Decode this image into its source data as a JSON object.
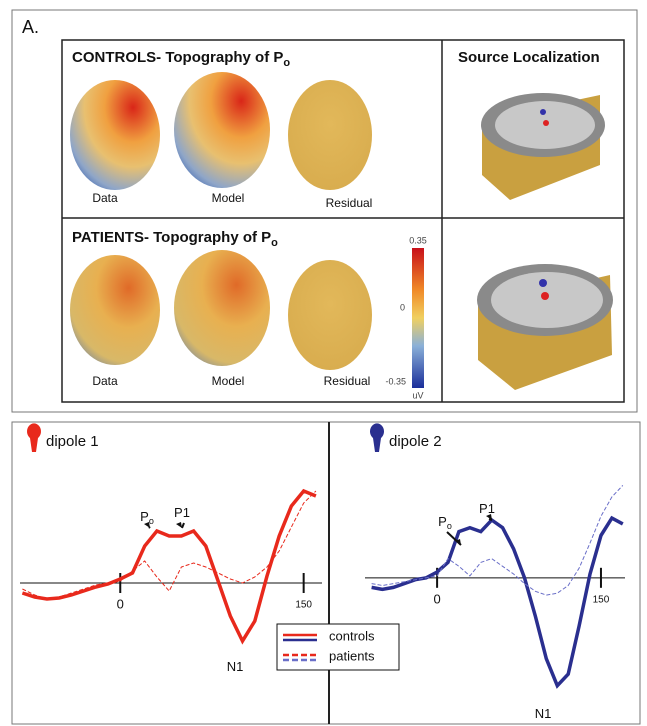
{
  "panel_label": "A.",
  "topography": {
    "controls": {
      "title": "CONTROLS- Topography of P",
      "subscript": "o",
      "labels": [
        "Data",
        "Model",
        "Residual"
      ]
    },
    "patients": {
      "title": "PATIENTS- Topography of P",
      "subscript": "o",
      "labels": [
        "Data",
        "Model",
        "Residual"
      ]
    },
    "source_title": "Source Localization",
    "colorbar": {
      "ticks": [
        "0.35",
        "0",
        "-0.35"
      ],
      "unit": "uV"
    }
  },
  "chart_data": [
    {
      "type": "line",
      "title": "dipole 1",
      "x": [
        -80,
        -70,
        -60,
        -50,
        -40,
        -30,
        -20,
        -10,
        0,
        10,
        20,
        30,
        40,
        50,
        60,
        70,
        80,
        90,
        100,
        110,
        120,
        130,
        140,
        150,
        160
      ],
      "series": [
        {
          "name": "controls",
          "color": "#e8291c",
          "dashed": false,
          "values": [
            -0.5,
            -0.7,
            -0.8,
            -0.75,
            -0.6,
            -0.4,
            -0.2,
            -0.05,
            0.2,
            0.5,
            1.85,
            2.6,
            2.35,
            2.35,
            2.6,
            1.85,
            0.1,
            -1.65,
            -2.9,
            -1.9,
            0.35,
            2.35,
            3.85,
            4.6,
            4.35
          ]
        },
        {
          "name": "patients",
          "color": "#e8291c",
          "dashed": true,
          "values": [
            -0.3,
            -0.6,
            -0.8,
            -0.7,
            -0.5,
            -0.3,
            -0.1,
            0,
            0.1,
            0.6,
            1.1,
            0.3,
            -0.4,
            0.8,
            1.0,
            0.8,
            0.5,
            0.2,
            0,
            0.3,
            0.8,
            1.6,
            2.8,
            4.0,
            4.6
          ]
        }
      ],
      "xlim": [
        -82,
        165
      ],
      "xticks": [
        0,
        150
      ],
      "ylim": [
        -6,
        7
      ],
      "annotations": [
        {
          "text": "P",
          "sub": "o"
        },
        {
          "text": "P1"
        },
        {
          "text": "N1"
        }
      ]
    },
    {
      "type": "line",
      "title": "dipole 2",
      "x": [
        -60,
        -50,
        -40,
        -30,
        -20,
        -10,
        0,
        10,
        20,
        30,
        40,
        50,
        60,
        70,
        80,
        90,
        100,
        110,
        120,
        130,
        140,
        150,
        160,
        170
      ],
      "series": [
        {
          "name": "controls",
          "color": "#2a2f8f",
          "dashed": false,
          "values": [
            -0.5,
            -0.6,
            -0.5,
            -0.3,
            -0.1,
            0,
            0.3,
            0.8,
            2.4,
            2.6,
            2.4,
            3.0,
            2.6,
            1.5,
            0,
            -2.0,
            -4.2,
            -5.6,
            -5.0,
            -2.5,
            0.2,
            2.2,
            3.1,
            2.8
          ]
        },
        {
          "name": "patients",
          "color": "#6a6fc8",
          "dashed": true,
          "values": [
            -0.3,
            -0.4,
            -0.3,
            -0.2,
            -0.1,
            0,
            0.1,
            1.0,
            0.6,
            0.1,
            0.8,
            1.0,
            0.6,
            0.2,
            -0.3,
            -0.7,
            -0.9,
            -0.8,
            -0.4,
            0.5,
            1.8,
            3.2,
            4.2,
            4.8
          ]
        }
      ],
      "xlim": [
        -66,
        172
      ],
      "xticks": [
        0,
        150
      ],
      "ylim": [
        -6.5,
        7
      ],
      "annotations": [
        {
          "text": "P",
          "sub": "o"
        },
        {
          "text": "P1"
        },
        {
          "text": "N1"
        }
      ]
    }
  ]
}
